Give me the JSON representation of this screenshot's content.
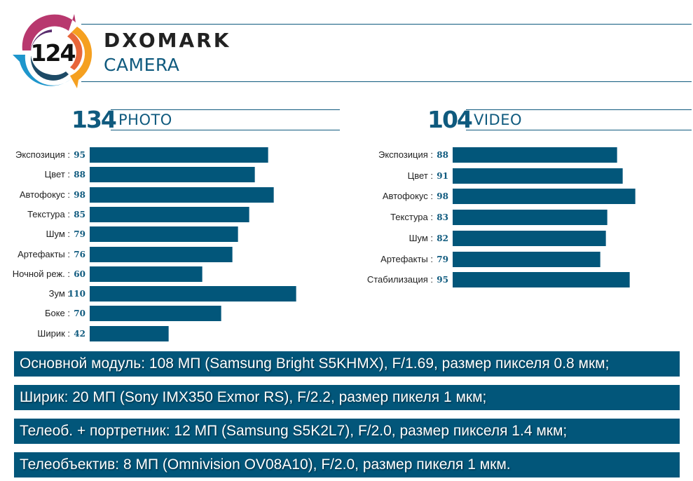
{
  "header": {
    "overall_score": "124",
    "brand": "DXOMARK",
    "subtitle": "CAMERA"
  },
  "colors": {
    "accent": "#0f5a7e",
    "bar": "#02567a",
    "logo_magenta": "#b8386e",
    "logo_purple": "#5a2d6e",
    "logo_orange": "#e8663a",
    "logo_yellow": "#f5a020",
    "logo_blue": "#1e96cc",
    "logo_navy": "#1d4a66"
  },
  "photo": {
    "score": "134",
    "label": "PHOTO"
  },
  "video": {
    "score": "104",
    "label": "VIDEO"
  },
  "chart_data": [
    {
      "type": "bar",
      "orientation": "horizontal",
      "title": "134 PHOTO",
      "categories": [
        "Экспозиция",
        "Цвет",
        "Автофокус",
        "Текстура",
        "Шум",
        "Артефакты",
        "Ночной реж.",
        "Зум",
        "Боке",
        "Ширик"
      ],
      "values": [
        95,
        88,
        98,
        85,
        79,
        76,
        60,
        110,
        70,
        42
      ],
      "xlabel": "",
      "ylabel": "",
      "grid": false
    },
    {
      "type": "bar",
      "orientation": "horizontal",
      "title": "104 VIDEO",
      "categories": [
        "Экспозиция",
        "Цвет",
        "Автофокус",
        "Текстура",
        "Шум",
        "Артефакты",
        "Стабилизация"
      ],
      "values": [
        88,
        91,
        98,
        83,
        82,
        79,
        95
      ],
      "xlabel": "",
      "ylabel": "",
      "grid": false
    }
  ],
  "specs": [
    "Основной модуль: 108 МП (Samsung Bright S5KHMX), F/1.69, размер пикселя 0.8 мкм;",
    "Ширик: 20 МП (Sony IMX350 Exmor RS), F/2.2, размер пикеля 1 мкм;",
    "Телеоб. + портретник: 12 МП (Samsung S5K2L7), F/2.0, размер пикселя 1.4 мкм;",
    "Телеобъектив: 8 МП (Omnivision OV08A10), F/2.0, размер пикеля 1 мкм."
  ]
}
